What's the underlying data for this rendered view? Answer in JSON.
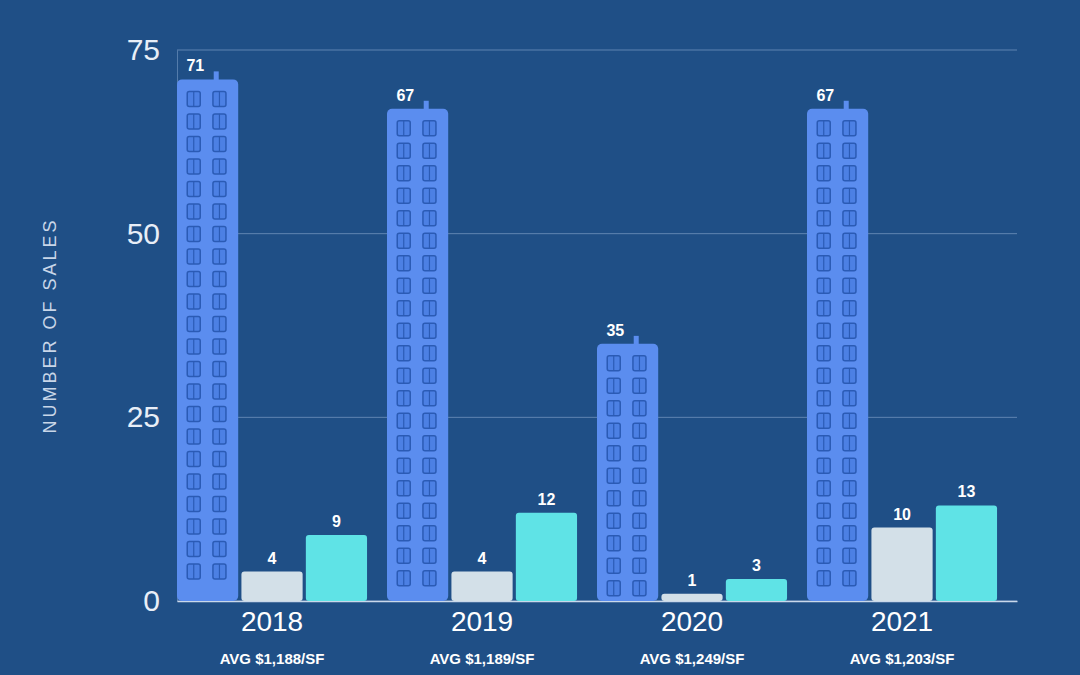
{
  "chart_data": {
    "type": "bar",
    "ylabel": "NUMBER OF SALES",
    "categories": [
      "2018",
      "2019",
      "2020",
      "2021"
    ],
    "annotations": [
      "AVG $1,188/SF",
      "AVG $1,189/SF",
      "AVG $1,249/SF",
      "AVG $1,203/SF"
    ],
    "series": [
      {
        "color": "#5b8def",
        "marker": "building",
        "values": [
          71,
          67,
          35,
          67
        ]
      },
      {
        "color": "#d3e0e8",
        "values": [
          4,
          4,
          1,
          10
        ]
      },
      {
        "color": "#5fe3e6",
        "values": [
          9,
          12,
          3,
          13
        ]
      }
    ],
    "ylim": [
      0,
      75
    ],
    "yticks": [
      0,
      25,
      50,
      75
    ],
    "grid": true,
    "data_labels": true
  }
}
